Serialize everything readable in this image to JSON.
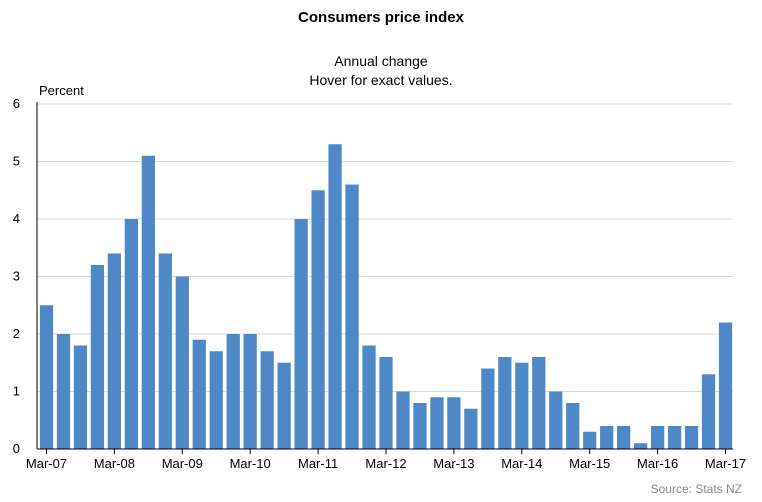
{
  "chart_data": {
    "type": "bar",
    "title": "Consumers price index",
    "subtitle": [
      "Annual change",
      "Hover for exact values."
    ],
    "ylabel": "Percent",
    "xlabel": "",
    "ylim": [
      0,
      6
    ],
    "yticks": [
      "0",
      "1",
      "2",
      "3",
      "4",
      "5",
      "6"
    ],
    "grid": true,
    "bar_color": "#4f88c6",
    "tick_labels": [
      {
        "index": 0,
        "label": "Mar-07"
      },
      {
        "index": 4,
        "label": "Mar-08"
      },
      {
        "index": 8,
        "label": "Mar-09"
      },
      {
        "index": 12,
        "label": "Mar-10"
      },
      {
        "index": 16,
        "label": "Mar-11"
      },
      {
        "index": 20,
        "label": "Mar-12"
      },
      {
        "index": 24,
        "label": "Mar-13"
      },
      {
        "index": 28,
        "label": "Mar-14"
      },
      {
        "index": 32,
        "label": "Mar-15"
      },
      {
        "index": 36,
        "label": "Mar-16"
      },
      {
        "index": 40,
        "label": "Mar-17"
      }
    ],
    "values": [
      2.5,
      2.0,
      1.8,
      3.2,
      3.4,
      4.0,
      5.1,
      3.4,
      3.0,
      1.9,
      1.7,
      2.0,
      2.0,
      1.7,
      1.5,
      4.0,
      4.5,
      5.3,
      4.6,
      1.8,
      1.6,
      1.0,
      0.8,
      0.9,
      0.9,
      0.7,
      1.4,
      1.6,
      1.5,
      1.6,
      1.0,
      0.8,
      0.3,
      0.4,
      0.4,
      0.1,
      0.4,
      0.4,
      0.4,
      1.3,
      2.2
    ]
  },
  "source": "Source: Stats NZ"
}
